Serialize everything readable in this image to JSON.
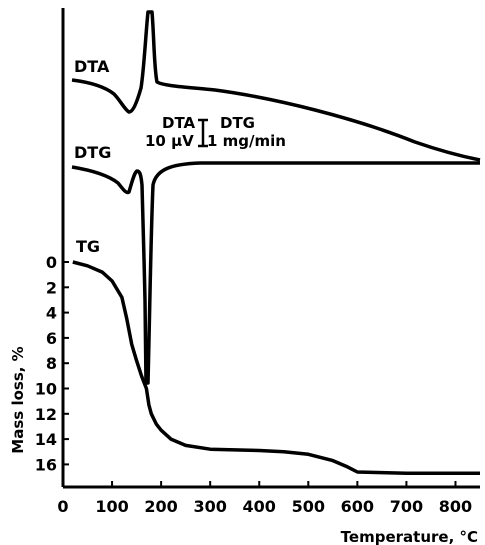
{
  "chart_data": {
    "type": "line",
    "xlabel": "Temperature, °C",
    "ylabel": "Mass loss, %",
    "xlim": [
      0,
      850
    ],
    "ylim": [
      0,
      18
    ],
    "x_ticks": [
      0,
      100,
      200,
      300,
      400,
      500,
      600,
      700,
      800
    ],
    "y_ticks": [
      0,
      2,
      4,
      6,
      8,
      10,
      12,
      14,
      16
    ],
    "y_inverted": true,
    "grid": false,
    "curve_labels": [
      "DTA",
      "DTG",
      "TG"
    ],
    "scale_bar": {
      "left_top": "DTA",
      "left_bottom": "10 μV",
      "right_top": "DTG",
      "right_bottom": "1 mg/min"
    },
    "series": [
      {
        "name": "TG",
        "x": [
          20,
          50,
          80,
          100,
          120,
          130,
          140,
          150,
          160,
          170,
          175,
          180,
          190,
          200,
          220,
          250,
          300,
          350,
          400,
          450,
          500,
          550,
          580,
          600,
          650,
          700,
          750,
          800,
          850
        ],
        "y": [
          0.0,
          0.3,
          0.8,
          1.5,
          2.8,
          4.5,
          6.5,
          7.8,
          9.0,
          10.0,
          11.3,
          12.0,
          12.8,
          13.3,
          14.0,
          14.5,
          14.8,
          14.85,
          14.9,
          15.0,
          15.2,
          15.7,
          16.2,
          16.6,
          16.65,
          16.7,
          16.7,
          16.7,
          16.7
        ]
      }
    ]
  }
}
